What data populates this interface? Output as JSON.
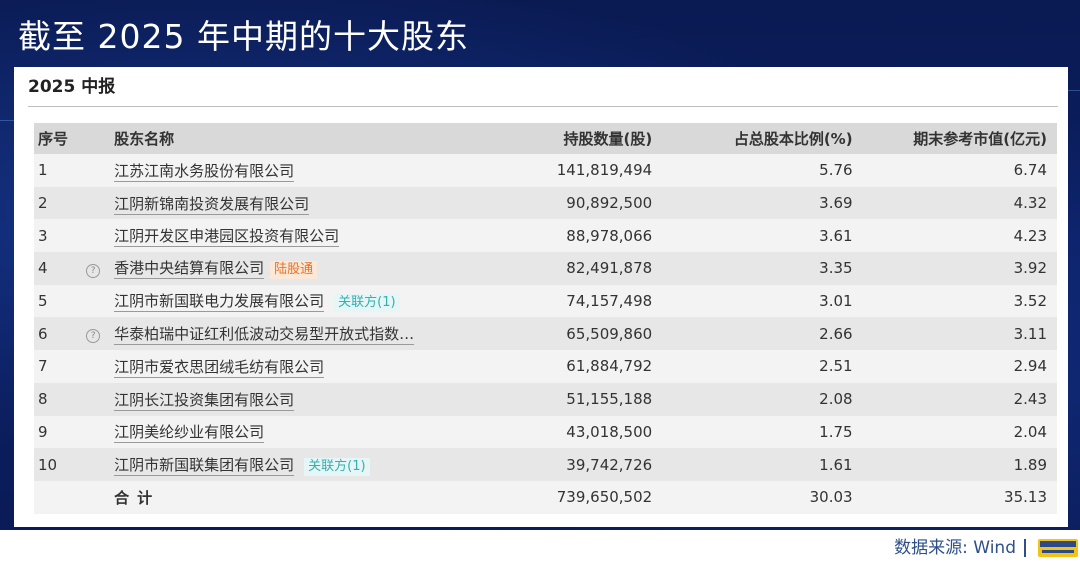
{
  "slide": {
    "title": "截至 2025 年中期的十大股东"
  },
  "card": {
    "heading": "2025 中报"
  },
  "table": {
    "headers": {
      "no": "序号",
      "name": "股东名称",
      "shares": "持股数量(股)",
      "ratio": "占总股本比例(%)",
      "market_value": "期末参考市值(亿元)"
    },
    "rows": [
      {
        "no": "1",
        "name": "江苏江南水务股份有限公司",
        "shares": "141,819,494",
        "ratio": "5.76",
        "mv": "6.74"
      },
      {
        "no": "2",
        "name": "江阴新锦南投资发展有限公司",
        "shares": "90,892,500",
        "ratio": "3.69",
        "mv": "4.32"
      },
      {
        "no": "3",
        "name": "江阴开发区申港园区投资有限公司",
        "shares": "88,978,066",
        "ratio": "3.61",
        "mv": "4.23"
      },
      {
        "no": "4",
        "name": "香港中央结算有限公司",
        "tag": "陆股通",
        "shares": "82,491,878",
        "ratio": "3.35",
        "mv": "3.92"
      },
      {
        "no": "5",
        "name": "江阴市新国联电力发展有限公司",
        "tag": "关联方(1)",
        "shares": "74,157,498",
        "ratio": "3.01",
        "mv": "3.52"
      },
      {
        "no": "6",
        "name": "华泰柏瑞中证红利低波动交易型开放式指数…",
        "shares": "65,509,860",
        "ratio": "2.66",
        "mv": "3.11"
      },
      {
        "no": "7",
        "name": "江阴市爱衣思团绒毛纺有限公司",
        "shares": "61,884,792",
        "ratio": "2.51",
        "mv": "2.94"
      },
      {
        "no": "8",
        "name": "江阴长江投资集团有限公司",
        "shares": "51,155,188",
        "ratio": "2.08",
        "mv": "2.43"
      },
      {
        "no": "9",
        "name": "江阴美纶纱业有限公司",
        "shares": "43,018,500",
        "ratio": "1.75",
        "mv": "2.04"
      },
      {
        "no": "10",
        "name": "江阴市新国联集团有限公司",
        "tag": "关联方(1)",
        "shares": "39,742,726",
        "ratio": "1.61",
        "mv": "1.89"
      }
    ],
    "total": {
      "label": "合计",
      "shares": "739,650,502",
      "ratio": "30.03",
      "mv": "35.13"
    },
    "help_icon": "question-circle-icon"
  },
  "footer": {
    "source": "数据来源: Wind"
  },
  "colors": {
    "banner_bg": "#0b1f63",
    "tag_orange": "#e5732b",
    "tag_teal": "#34b0b0",
    "source_text": "#2e4f8a"
  }
}
